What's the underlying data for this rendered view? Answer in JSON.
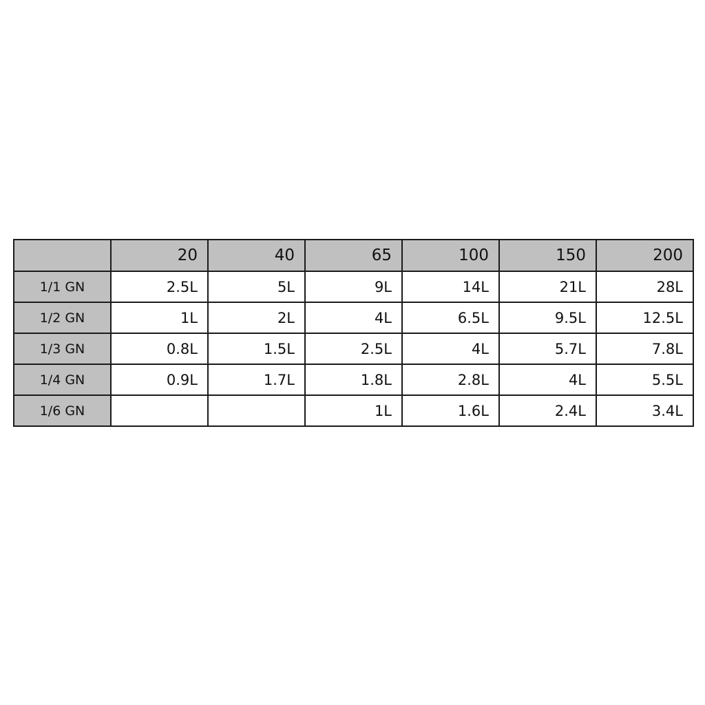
{
  "table": {
    "headers": [
      "",
      "20",
      "40",
      "65",
      "100",
      "150",
      "200"
    ],
    "rows": [
      {
        "label": "1/1 GN",
        "values": [
          "2.5L",
          "5L",
          "9L",
          "14L",
          "21L",
          "28L"
        ]
      },
      {
        "label": "1/2 GN",
        "values": [
          "1L",
          "2L",
          "4L",
          "6.5L",
          "9.5L",
          "12.5L"
        ]
      },
      {
        "label": "1/3 GN",
        "values": [
          "0.8L",
          "1.5L",
          "2.5L",
          "4L",
          "5.7L",
          "7.8L"
        ]
      },
      {
        "label": "1/4 GN",
        "values": [
          "0.9L",
          "1.7L",
          "1.8L",
          "2.8L",
          "4L",
          "5.5L"
        ]
      },
      {
        "label": "1/6 GN",
        "values": [
          "",
          "",
          "1L",
          "1.6L",
          "2.4L",
          "3.4L"
        ]
      }
    ]
  },
  "colors": {
    "header_bg": "#c0c0c0",
    "border": "#1a1a1a"
  }
}
